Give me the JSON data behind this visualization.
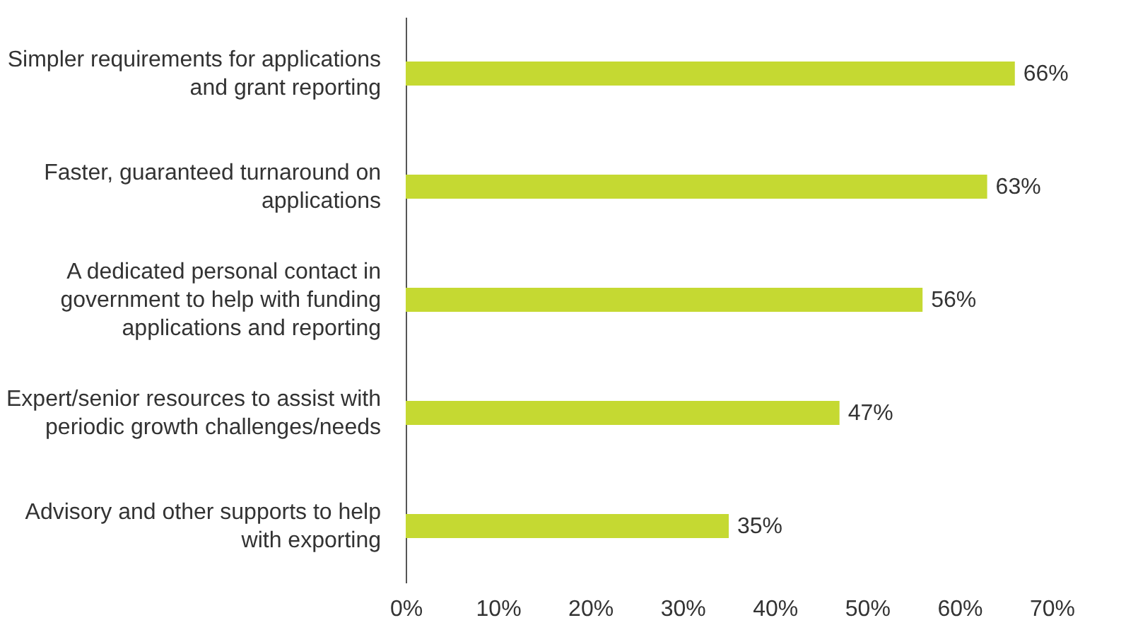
{
  "chart_data": {
    "type": "bar",
    "orientation": "horizontal",
    "categories": [
      "Simpler requirements for applications and grant reporting",
      "Faster, guaranteed turnaround on applications",
      "A dedicated personal contact in government to help with funding applications and reporting",
      "Expert/senior resources to assist with periodic growth challenges/needs",
      "Advisory and other supports to help with exporting"
    ],
    "values": [
      66,
      63,
      56,
      47,
      35
    ],
    "value_labels": [
      "66%",
      "63%",
      "56%",
      "47%",
      "35%"
    ],
    "color": "#c5d932",
    "xlim": [
      0,
      70
    ],
    "xticks": [
      {
        "value": 0,
        "label": "0%"
      },
      {
        "value": 10,
        "label": "10%"
      },
      {
        "value": 20,
        "label": "20%"
      },
      {
        "value": 30,
        "label": "30%"
      },
      {
        "value": 40,
        "label": "40%"
      },
      {
        "value": 50,
        "label": "50%"
      },
      {
        "value": 60,
        "label": "60%"
      },
      {
        "value": 70,
        "label": "70%"
      }
    ],
    "grid": false
  }
}
